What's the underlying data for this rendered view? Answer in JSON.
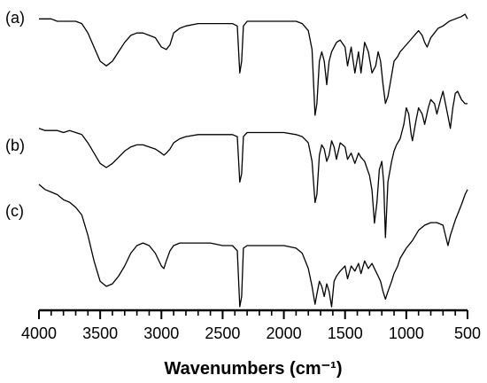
{
  "chart_data": {
    "type": "line",
    "title": "",
    "xlabel": "Wavenumbers (cm⁻¹)",
    "ylabel": "",
    "x_reversed": true,
    "xlim": [
      4000,
      500
    ],
    "x_ticks": [
      4000,
      3500,
      3000,
      2500,
      2000,
      1500,
      1000,
      500
    ],
    "x_tick_labels": [
      "4000",
      "3500",
      "3000",
      "2500",
      "2000",
      "1500",
      "1000",
      "500"
    ],
    "y_ticks_shown": false,
    "grid": false,
    "legend": "none",
    "series": [
      {
        "name": "(a)",
        "x": [
          4000,
          3950,
          3900,
          3850,
          3800,
          3750,
          3700,
          3650,
          3600,
          3550,
          3500,
          3450,
          3400,
          3350,
          3300,
          3250,
          3200,
          3150,
          3100,
          3050,
          3000,
          2960,
          2930,
          2900,
          2850,
          2800,
          2700,
          2600,
          2500,
          2420,
          2380,
          2360,
          2345,
          2330,
          2300,
          2200,
          2100,
          2000,
          1900,
          1850,
          1800,
          1770,
          1745,
          1730,
          1710,
          1690,
          1670,
          1650,
          1630,
          1610,
          1590,
          1570,
          1540,
          1500,
          1480,
          1450,
          1420,
          1390,
          1370,
          1340,
          1310,
          1280,
          1250,
          1230,
          1210,
          1190,
          1170,
          1150,
          1120,
          1100,
          1070,
          1050,
          1000,
          950,
          900,
          870,
          850,
          830,
          800,
          770,
          740,
          700,
          650,
          600,
          550,
          520,
          500
        ],
        "y": [
          98,
          98,
          98,
          97,
          97,
          97,
          97,
          96,
          92,
          86,
          80,
          78,
          80,
          84,
          88,
          91,
          92,
          92,
          91,
          90,
          86,
          85,
          87,
          92,
          94,
          95,
          96,
          96,
          96,
          96,
          95,
          75,
          80,
          95,
          97,
          97,
          97,
          97,
          97,
          96,
          93,
          85,
          57,
          62,
          80,
          84,
          80,
          70,
          80,
          84,
          86,
          88,
          89,
          86,
          78,
          86,
          75,
          84,
          75,
          88,
          84,
          75,
          78,
          84,
          80,
          70,
          62,
          65,
          74,
          80,
          82,
          84,
          87,
          90,
          93,
          91,
          88,
          86,
          90,
          92,
          94,
          95,
          97,
          98,
          99,
          100,
          98
        ]
      },
      {
        "name": "(b)",
        "x": [
          4000,
          3950,
          3900,
          3850,
          3800,
          3750,
          3700,
          3650,
          3600,
          3550,
          3500,
          3450,
          3400,
          3350,
          3300,
          3250,
          3200,
          3150,
          3100,
          3050,
          3000,
          2980,
          2960,
          2930,
          2900,
          2850,
          2800,
          2700,
          2600,
          2500,
          2420,
          2380,
          2360,
          2345,
          2330,
          2300,
          2200,
          2100,
          2000,
          1900,
          1850,
          1800,
          1770,
          1745,
          1730,
          1710,
          1690,
          1670,
          1650,
          1630,
          1610,
          1590,
          1570,
          1540,
          1500,
          1480,
          1450,
          1420,
          1390,
          1370,
          1340,
          1300,
          1280,
          1260,
          1240,
          1220,
          1200,
          1185,
          1170,
          1150,
          1120,
          1100,
          1080,
          1050,
          1020,
          1000,
          980,
          960,
          950,
          920,
          900,
          870,
          850,
          820,
          800,
          770,
          750,
          720,
          700,
          680,
          660,
          640,
          620,
          600,
          580,
          550,
          520,
          500
        ],
        "y": [
          98,
          97,
          97,
          97,
          96,
          97,
          96,
          95,
          91,
          86,
          81,
          79,
          81,
          84,
          87,
          89,
          90,
          90,
          89,
          88,
          86,
          85,
          86,
          88,
          91,
          93,
          94,
          95,
          95,
          95,
          95,
          94,
          72,
          76,
          94,
          96,
          96,
          96,
          96,
          95,
          94,
          91,
          82,
          62,
          66,
          85,
          90,
          88,
          82,
          85,
          92,
          89,
          83,
          91,
          89,
          83,
          86,
          81,
          86,
          84,
          82,
          75,
          68,
          52,
          62,
          78,
          82,
          72,
          45,
          72,
          82,
          87,
          90,
          93,
          100,
          108,
          105,
          95,
          92,
          102,
          108,
          105,
          100,
          108,
          112,
          110,
          105,
          112,
          116,
          110,
          104,
          98,
          108,
          115,
          116,
          112,
          110,
          110
        ]
      },
      {
        "name": "(c)",
        "x": [
          4000,
          3950,
          3900,
          3850,
          3800,
          3750,
          3700,
          3650,
          3600,
          3550,
          3500,
          3450,
          3400,
          3350,
          3300,
          3250,
          3200,
          3150,
          3100,
          3050,
          3000,
          2980,
          2960,
          2930,
          2900,
          2850,
          2800,
          2700,
          2600,
          2500,
          2420,
          2380,
          2360,
          2345,
          2330,
          2300,
          2200,
          2100,
          2000,
          1900,
          1850,
          1800,
          1770,
          1745,
          1730,
          1710,
          1690,
          1670,
          1650,
          1630,
          1610,
          1590,
          1570,
          1540,
          1500,
          1480,
          1450,
          1420,
          1390,
          1370,
          1340,
          1310,
          1280,
          1250,
          1230,
          1210,
          1190,
          1170,
          1150,
          1120,
          1100,
          1070,
          1050,
          1000,
          950,
          900,
          850,
          800,
          750,
          700,
          680,
          660,
          640,
          600,
          550,
          520,
          500
        ],
        "y": [
          130,
          128,
          127,
          126,
          124,
          123,
          121,
          118,
          110,
          100,
          92,
          90,
          91,
          94,
          98,
          103,
          106,
          107,
          106,
          103,
          98,
          97,
          100,
          104,
          106,
          107,
          107,
          107,
          107,
          106,
          106,
          104,
          82,
          86,
          105,
          106,
          106,
          106,
          106,
          105,
          103,
          97,
          90,
          83,
          87,
          92,
          90,
          86,
          91,
          88,
          82,
          92,
          94,
          96,
          98,
          93,
          98,
          96,
          99,
          95,
          100,
          97,
          99,
          96,
          94,
          92,
          88,
          85,
          88,
          92,
          95,
          98,
          101,
          105,
          108,
          112,
          114,
          115,
          115,
          114,
          110,
          106,
          110,
          116,
          122,
          126,
          128
        ]
      }
    ]
  },
  "panel_labels": [
    "(a)",
    "(b)",
    "(c)"
  ]
}
